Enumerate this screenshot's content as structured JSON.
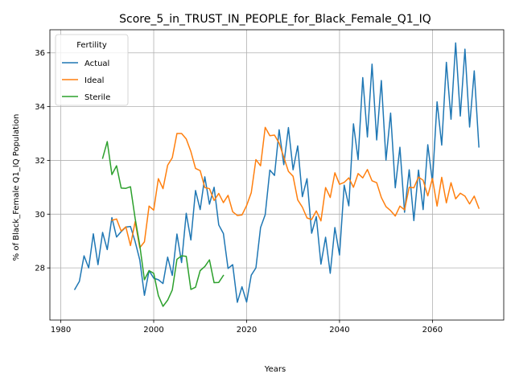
{
  "chart_data": {
    "type": "line",
    "title": "Score_5_in_TRUST_IN_PEOPLE_for_Black_Female_Q1_IQ",
    "xlabel": "Years",
    "ylabel": "% of Black_Female Q1_IQ Population",
    "xlim": [
      1977.65,
      2075.35
    ],
    "ylim": [
      26.06,
      36.86
    ],
    "xticks": [
      1980,
      2000,
      2020,
      2040,
      2060
    ],
    "yticks": [
      28,
      30,
      32,
      34,
      36
    ],
    "grid": true,
    "legend": {
      "title": "Fertility",
      "placement": "top-left"
    },
    "series": [
      {
        "name": "Actual",
        "color": "#1f77b4",
        "x": [
          1983,
          1984,
          1985,
          1986,
          1987,
          1988,
          1989,
          1990,
          1991,
          1992,
          1993,
          1994,
          1995,
          1996,
          1997,
          1998,
          1999,
          2000,
          2001,
          2002,
          2003,
          2004,
          2005,
          2006,
          2007,
          2008,
          2009,
          2010,
          2011,
          2012,
          2013,
          2014,
          2015,
          2016,
          2017,
          2018,
          2019,
          2020,
          2021,
          2022,
          2023,
          2024,
          2025,
          2026,
          2027,
          2028,
          2029,
          2030,
          2031,
          2032,
          2033,
          2034,
          2035,
          2036,
          2037,
          2038,
          2039,
          2040,
          2041,
          2042,
          2043,
          2044,
          2045,
          2046,
          2047,
          2048,
          2049,
          2050,
          2051,
          2052,
          2053,
          2054,
          2055,
          2056,
          2057,
          2058,
          2059,
          2060,
          2061,
          2062,
          2063,
          2064,
          2065,
          2066,
          2067,
          2068,
          2069,
          2070
        ],
        "values": [
          27.2,
          27.5,
          28.45,
          28.0,
          29.27,
          28.12,
          29.32,
          28.68,
          29.87,
          29.15,
          29.35,
          29.52,
          29.54,
          28.98,
          28.3,
          26.98,
          27.9,
          27.62,
          27.56,
          27.42,
          28.4,
          27.72,
          29.26,
          28.2,
          30.03,
          29.04,
          30.88,
          30.17,
          31.39,
          30.37,
          31.0,
          29.6,
          29.28,
          27.98,
          28.12,
          26.72,
          27.3,
          26.73,
          27.73,
          28.0,
          29.5,
          29.98,
          31.64,
          31.44,
          33.14,
          31.84,
          33.22,
          31.65,
          32.54,
          30.65,
          31.32,
          29.29,
          29.91,
          28.14,
          29.14,
          27.8,
          29.5,
          28.48,
          31.08,
          30.31,
          33.36,
          32.03,
          35.08,
          32.87,
          35.58,
          32.76,
          34.97,
          32.01,
          33.76,
          30.98,
          32.49,
          30.07,
          31.65,
          29.76,
          31.64,
          30.17,
          32.58,
          31.2,
          34.18,
          32.57,
          35.65,
          33.53,
          36.37,
          33.65,
          36.14,
          33.24,
          35.33,
          32.5
        ]
      },
      {
        "name": "Ideal",
        "color": "#ff7f0e",
        "x": [
          1991,
          1992,
          1993,
          1994,
          1995,
          1996,
          1997,
          1998,
          1999,
          2000,
          2001,
          2002,
          2003,
          2004,
          2005,
          2006,
          2007,
          2008,
          2009,
          2010,
          2011,
          2012,
          2013,
          2014,
          2015,
          2016,
          2017,
          2018,
          2019,
          2020,
          2021,
          2022,
          2023,
          2024,
          2025,
          2026,
          2027,
          2028,
          2029,
          2030,
          2031,
          2032,
          2033,
          2034,
          2035,
          2036,
          2037,
          2038,
          2039,
          2040,
          2041,
          2042,
          2043,
          2044,
          2045,
          2046,
          2047,
          2048,
          2049,
          2050,
          2051,
          2052,
          2053,
          2054,
          2055,
          2056,
          2057,
          2058,
          2059,
          2060,
          2061,
          2062,
          2063,
          2064,
          2065,
          2066,
          2067,
          2068,
          2069,
          2070
        ],
        "values": [
          29.77,
          29.82,
          29.37,
          29.53,
          28.83,
          29.72,
          28.75,
          28.97,
          30.3,
          30.15,
          31.32,
          30.95,
          31.82,
          32.1,
          33.0,
          33.0,
          32.8,
          32.33,
          31.7,
          31.62,
          30.99,
          30.95,
          30.51,
          30.77,
          30.43,
          30.7,
          30.09,
          29.95,
          29.97,
          30.32,
          30.8,
          32.03,
          31.8,
          33.23,
          32.92,
          32.94,
          32.64,
          32.12,
          31.59,
          31.41,
          30.53,
          30.26,
          29.86,
          29.8,
          30.12,
          29.75,
          30.99,
          30.62,
          31.54,
          31.11,
          31.18,
          31.35,
          31.0,
          31.51,
          31.35,
          31.66,
          31.24,
          31.17,
          30.62,
          30.28,
          30.13,
          29.93,
          30.3,
          30.16,
          31.0,
          30.98,
          31.38,
          31.26,
          30.68,
          31.33,
          30.3,
          31.37,
          30.42,
          31.17,
          30.57,
          30.78,
          30.67,
          30.38,
          30.67,
          30.22
        ]
      },
      {
        "name": "Sterile",
        "color": "#2ca02c",
        "x": [
          1989,
          1990,
          1991,
          1992,
          1993,
          1994,
          1995,
          1996,
          1997,
          1998,
          1999,
          2000,
          2001,
          2002,
          2003,
          2004,
          2005,
          2006,
          2007,
          2008,
          2009,
          2010,
          2011,
          2012,
          2013,
          2014,
          2015
        ],
        "values": [
          32.08,
          32.7,
          31.47,
          31.8,
          30.97,
          30.96,
          31.02,
          29.84,
          28.84,
          27.56,
          27.9,
          27.8,
          26.97,
          26.57,
          26.8,
          27.18,
          28.32,
          28.45,
          28.43,
          27.2,
          27.28,
          27.9,
          28.05,
          28.3,
          27.45,
          27.46,
          27.72
        ]
      }
    ]
  }
}
